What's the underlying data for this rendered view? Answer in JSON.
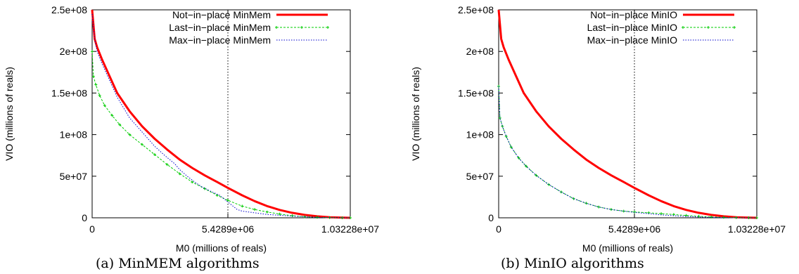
{
  "chart_data": [
    {
      "type": "line",
      "caption": "(a) MinMEM algorithms",
      "xlabel": "M0 (millions of reals)",
      "ylabel": "VIO (millions of reals)",
      "xlim": [
        0,
        10322800
      ],
      "ylim": [
        0,
        250000000
      ],
      "xticks": [
        0,
        5428900,
        10322800
      ],
      "xtick_labels": [
        "0",
        "5.4289e+06",
        "1.03228e+07"
      ],
      "yticks": [
        0,
        50000000,
        100000000,
        150000000,
        200000000,
        250000000
      ],
      "ytick_labels": [
        "0",
        "5e+07",
        "1e+08",
        "1.5e+08",
        "2e+08",
        "2.5e+08"
      ],
      "vline": 5428900,
      "legend_position": "top-right",
      "series": [
        {
          "name": "Not−in−place MinMem",
          "color": "#ff0000",
          "style": "solid-thick",
          "x": [
            0,
            100000,
            200000,
            400000,
            700000,
            1000000,
            1500000,
            2000000,
            2500000,
            3000000,
            3500000,
            4000000,
            4500000,
            5000000,
            5428900,
            6000000,
            6500000,
            7000000,
            7500000,
            8000000,
            8500000,
            9000000,
            9500000,
            10000000,
            10322800
          ],
          "y": [
            250000000,
            215000000,
            205000000,
            190000000,
            170000000,
            150000000,
            128000000,
            110000000,
            95000000,
            82000000,
            70000000,
            60000000,
            51000000,
            43000000,
            36000000,
            27000000,
            20000000,
            14000000,
            9500000,
            6000000,
            3500000,
            1800000,
            700000,
            150000,
            0
          ]
        },
        {
          "name": "Last−in−place MinMem",
          "color": "#00cc00",
          "style": "dashed-points",
          "x": [
            0,
            50000,
            150000,
            300000,
            500000,
            800000,
            1100000,
            1500000,
            2000000,
            2500000,
            3000000,
            3500000,
            4000000,
            4500000,
            5000000,
            5428900,
            6000000,
            6500000,
            7000000,
            7500000,
            8000000,
            8500000,
            9000000,
            9500000,
            10000000,
            10322800
          ],
          "y": [
            200000000,
            170000000,
            160000000,
            147000000,
            135000000,
            123000000,
            112000000,
            100000000,
            88000000,
            76000000,
            64000000,
            53000000,
            43000000,
            35000000,
            27000000,
            21000000,
            14000000,
            10000000,
            7000000,
            4500000,
            2500000,
            1300000,
            600000,
            250000,
            50000,
            0
          ]
        },
        {
          "name": "Max−in−place MinMem",
          "color": "#0000cc",
          "style": "dotted",
          "x": [
            0,
            100000,
            200000,
            400000,
            700000,
            1000000,
            1500000,
            2000000,
            2500000,
            2900000,
            3300000,
            3500000,
            3800000,
            4100000,
            4400000,
            4800000,
            5100000,
            5428900,
            5800000,
            6000000,
            6500000,
            7000000,
            7500000,
            8000000,
            8500000,
            9000000,
            9500000,
            10000000,
            10322800
          ],
          "y": [
            245000000,
            215000000,
            200000000,
            185000000,
            165000000,
            145000000,
            120000000,
            103000000,
            86000000,
            75000000,
            65000000,
            58000000,
            50000000,
            43000000,
            37000000,
            31000000,
            27000000,
            19000000,
            10000000,
            8000000,
            6000000,
            4000000,
            3000000,
            2000000,
            1200000,
            600000,
            250000,
            50000,
            0
          ]
        }
      ]
    },
    {
      "type": "line",
      "caption": "(b) MinIO algorithms",
      "xlabel": "M0 (millions of reals)",
      "ylabel": "VIO (millions of reals)",
      "xlim": [
        0,
        10322800
      ],
      "ylim": [
        0,
        250000000
      ],
      "xticks": [
        0,
        5428900,
        10322800
      ],
      "xtick_labels": [
        "0",
        "5.4289e+06",
        "1.03228e+07"
      ],
      "yticks": [
        0,
        50000000,
        100000000,
        150000000,
        200000000,
        250000000
      ],
      "ytick_labels": [
        "0",
        "5e+07",
        "1e+08",
        "1.5e+08",
        "2e+08",
        "2.5e+08"
      ],
      "vline": 5428900,
      "legend_position": "top-right",
      "series": [
        {
          "name": "Not−in−place MinIO",
          "color": "#ff0000",
          "style": "solid-thick",
          "x": [
            0,
            100000,
            200000,
            400000,
            700000,
            1000000,
            1500000,
            2000000,
            2500000,
            3000000,
            3500000,
            4000000,
            4500000,
            5000000,
            5428900,
            6000000,
            6500000,
            7000000,
            7500000,
            8000000,
            8500000,
            9000000,
            9500000,
            10000000,
            10322800
          ],
          "y": [
            250000000,
            215000000,
            205000000,
            190000000,
            170000000,
            150000000,
            128000000,
            110000000,
            95000000,
            82000000,
            70000000,
            60000000,
            51000000,
            43000000,
            36000000,
            27000000,
            20000000,
            14000000,
            9500000,
            6000000,
            3500000,
            1800000,
            700000,
            150000,
            0
          ]
        },
        {
          "name": "Last−in−place MinIO",
          "color": "#00cc00",
          "style": "dashed-points",
          "x": [
            0,
            50000,
            150000,
            300000,
            500000,
            800000,
            1100000,
            1500000,
            2000000,
            2500000,
            3000000,
            3500000,
            4000000,
            4500000,
            5000000,
            5428900,
            6000000,
            6500000,
            7000000,
            7500000,
            8000000,
            8500000,
            9000000,
            9500000,
            10000000,
            10322800
          ],
          "y": [
            158000000,
            120000000,
            110000000,
            98000000,
            85000000,
            72000000,
            62000000,
            51000000,
            40000000,
            31000000,
            23000000,
            17500000,
            13000000,
            10000000,
            8000000,
            7000000,
            6000000,
            5000000,
            4000000,
            2800000,
            1800000,
            1000000,
            500000,
            200000,
            50000,
            0
          ]
        },
        {
          "name": "Max−in−place MinIO",
          "color": "#0000cc",
          "style": "dotted",
          "x": [
            0,
            50000,
            150000,
            300000,
            500000,
            800000,
            1100000,
            1500000,
            2000000,
            2500000,
            3000000,
            3500000,
            4000000,
            4500000,
            5000000,
            5428900,
            6000000,
            6500000,
            7000000,
            7500000,
            8000000,
            8500000,
            9000000,
            9500000,
            10000000,
            10322800
          ],
          "y": [
            158000000,
            120000000,
            110000000,
            98000000,
            85000000,
            72000000,
            62000000,
            51000000,
            40000000,
            31000000,
            23000000,
            17500000,
            13000000,
            10000000,
            8000000,
            6500000,
            5000000,
            3500000,
            2500000,
            1600000,
            1000000,
            500000,
            250000,
            100000,
            20000,
            0
          ]
        }
      ]
    }
  ]
}
